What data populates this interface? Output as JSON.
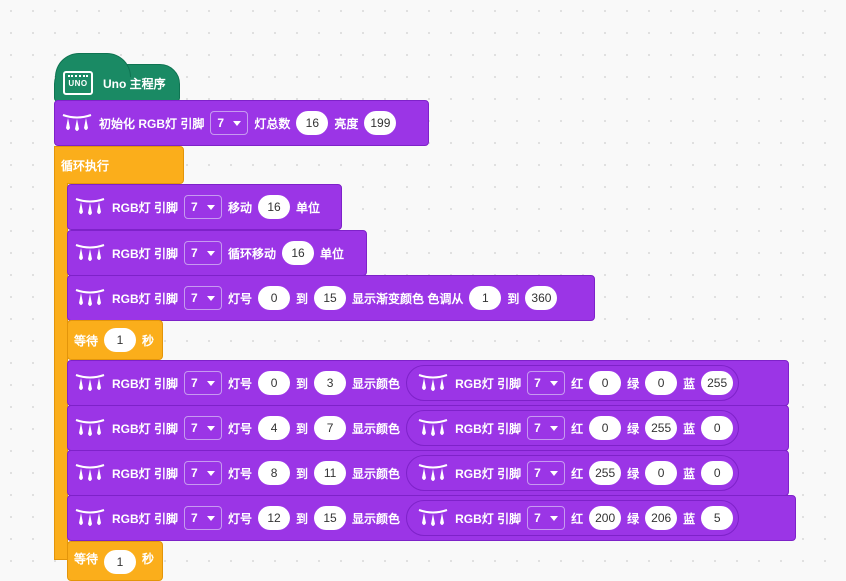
{
  "main_program": {
    "icon_name": "uno-board-icon",
    "icon_text": "UNO",
    "label": "Uno 主程序"
  },
  "init_block": {
    "icon_name": "rgb-led-icon",
    "label": "初始化 RGB灯 引脚",
    "pin": "7",
    "count_label": "灯总数",
    "count": "16",
    "brightness_label": "亮度",
    "brightness": "199"
  },
  "loop_block": {
    "label": "循环执行"
  },
  "move_block": {
    "label": "RGB灯 引脚",
    "pin": "7",
    "action": "移动",
    "amount": "16",
    "unit": "单位"
  },
  "cycle_move_block": {
    "label": "RGB灯 引脚",
    "pin": "7",
    "action": "循环移动",
    "amount": "16",
    "unit": "单位"
  },
  "gradient_block": {
    "label": "RGB灯 引脚",
    "pin": "7",
    "lamp_label": "灯号",
    "from": "0",
    "to_label": "到",
    "to": "15",
    "show_label": "显示渐变颜色 色调从",
    "hue_from": "1",
    "hue_to_label": "到",
    "hue_to": "360"
  },
  "wait_block": {
    "label": "等待",
    "value": "1",
    "unit": "秒"
  },
  "color_blocks": [
    {
      "label": "RGB灯 引脚",
      "pin": "7",
      "lamp_label": "灯号",
      "from": "0",
      "to_label": "到",
      "to": "3",
      "show_label": "显示颜色",
      "rep_label": "RGB灯 引脚",
      "rep_pin": "7",
      "r_label": "红",
      "r": "0",
      "g_label": "绿",
      "g": "0",
      "b_label": "蓝",
      "b": "255"
    },
    {
      "label": "RGB灯 引脚",
      "pin": "7",
      "lamp_label": "灯号",
      "from": "4",
      "to_label": "到",
      "to": "7",
      "show_label": "显示颜色",
      "rep_label": "RGB灯 引脚",
      "rep_pin": "7",
      "r_label": "红",
      "r": "0",
      "g_label": "绿",
      "g": "255",
      "b_label": "蓝",
      "b": "0"
    },
    {
      "label": "RGB灯 引脚",
      "pin": "7",
      "lamp_label": "灯号",
      "from": "8",
      "to_label": "到",
      "to": "11",
      "show_label": "显示颜色",
      "rep_label": "RGB灯 引脚",
      "rep_pin": "7",
      "r_label": "红",
      "r": "255",
      "g_label": "绿",
      "g": "0",
      "b_label": "蓝",
      "b": "0"
    },
    {
      "label": "RGB灯 引脚",
      "pin": "7",
      "lamp_label": "灯号",
      "from": "12",
      "to_label": "到",
      "to": "15",
      "show_label": "显示颜色",
      "rep_label": "RGB灯 引脚",
      "rep_pin": "7",
      "r_label": "红",
      "r": "200",
      "g_label": "绿",
      "g": "206",
      "b_label": "蓝",
      "b": "5"
    }
  ],
  "wait_block_2": {
    "label": "等待",
    "value": "1",
    "unit": "秒"
  },
  "colors": {
    "purple": "#9b35e6",
    "orange": "#fbae1b",
    "green": "#1a8a64",
    "canvas": "#f9f9f9"
  }
}
